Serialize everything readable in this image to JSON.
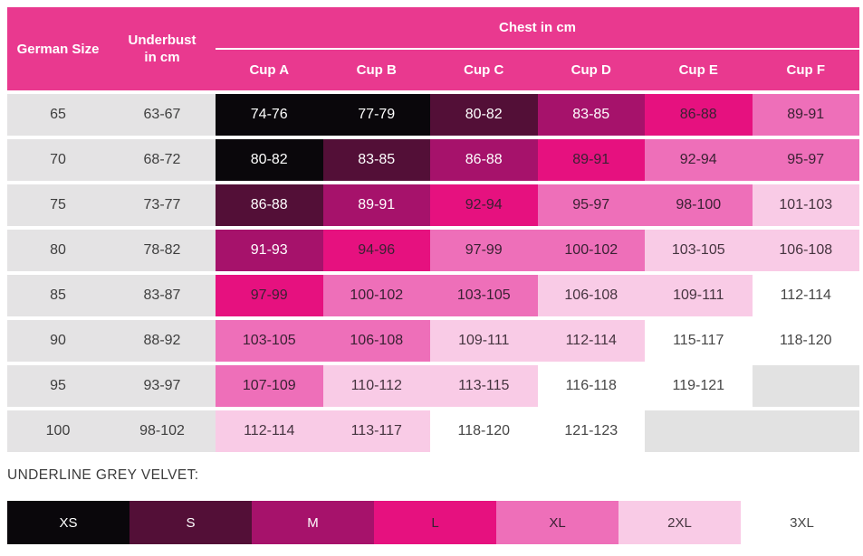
{
  "palette": {
    "s0": {
      "bg": "#0A070B",
      "fg": "#FFFFFF"
    },
    "s1": {
      "bg": "#530F37",
      "fg": "#FFFFFF"
    },
    "s2": {
      "bg": "#A6126B",
      "fg": "#FFFFFF"
    },
    "s3": {
      "bg": "#E6117F",
      "fg": "#3A2133"
    },
    "s4": {
      "bg": "#EE6FB9",
      "fg": "#3A2133"
    },
    "s5": {
      "bg": "#F9CBE6",
      "fg": "#45343F"
    },
    "s6": {
      "bg": "#FFFFFF",
      "fg": "#464646"
    },
    "empty": {
      "bg": "#E2E2E2",
      "fg": "#3E3E3E"
    },
    "header_bg": "#E9398F",
    "label_col_bg": "#E4E3E4"
  },
  "table": {
    "header": {
      "size_label": "German Size",
      "underbust_label": "Underbust in cm",
      "group_label": "Chest in cm",
      "cups": [
        "Cup A",
        "Cup B",
        "Cup C",
        "Cup D",
        "Cup E",
        "Cup F"
      ]
    },
    "rows": [
      {
        "size": "65",
        "underbust": "63-67",
        "cells": [
          {
            "text": "74-76",
            "style": "s0"
          },
          {
            "text": "77-79",
            "style": "s0"
          },
          {
            "text": "80-82",
            "style": "s1"
          },
          {
            "text": "83-85",
            "style": "s2"
          },
          {
            "text": "86-88",
            "style": "s3"
          },
          {
            "text": "89-91",
            "style": "s4"
          }
        ]
      },
      {
        "size": "70",
        "underbust": "68-72",
        "cells": [
          {
            "text": "80-82",
            "style": "s0"
          },
          {
            "text": "83-85",
            "style": "s1"
          },
          {
            "text": "86-88",
            "style": "s2"
          },
          {
            "text": "89-91",
            "style": "s3"
          },
          {
            "text": "92-94",
            "style": "s4"
          },
          {
            "text": "95-97",
            "style": "s4"
          }
        ]
      },
      {
        "size": "75",
        "underbust": "73-77",
        "cells": [
          {
            "text": "86-88",
            "style": "s1"
          },
          {
            "text": "89-91",
            "style": "s2"
          },
          {
            "text": "92-94",
            "style": "s3"
          },
          {
            "text": "95-97",
            "style": "s4"
          },
          {
            "text": "98-100",
            "style": "s4"
          },
          {
            "text": "101-103",
            "style": "s5"
          }
        ]
      },
      {
        "size": "80",
        "underbust": "78-82",
        "cells": [
          {
            "text": "91-93",
            "style": "s2"
          },
          {
            "text": "94-96",
            "style": "s3"
          },
          {
            "text": "97-99",
            "style": "s4"
          },
          {
            "text": "100-102",
            "style": "s4"
          },
          {
            "text": "103-105",
            "style": "s5"
          },
          {
            "text": "106-108",
            "style": "s5"
          }
        ]
      },
      {
        "size": "85",
        "underbust": "83-87",
        "cells": [
          {
            "text": "97-99",
            "style": "s3"
          },
          {
            "text": "100-102",
            "style": "s4"
          },
          {
            "text": "103-105",
            "style": "s4"
          },
          {
            "text": "106-108",
            "style": "s5"
          },
          {
            "text": "109-111",
            "style": "s5"
          },
          {
            "text": "112-114",
            "style": "s6"
          }
        ]
      },
      {
        "size": "90",
        "underbust": "88-92",
        "cells": [
          {
            "text": "103-105",
            "style": "s4"
          },
          {
            "text": "106-108",
            "style": "s4"
          },
          {
            "text": "109-111",
            "style": "s5"
          },
          {
            "text": "112-114",
            "style": "s5"
          },
          {
            "text": "115-117",
            "style": "s6"
          },
          {
            "text": "118-120",
            "style": "s6"
          }
        ]
      },
      {
        "size": "95",
        "underbust": "93-97",
        "cells": [
          {
            "text": "107-109",
            "style": "s4"
          },
          {
            "text": "110-112",
            "style": "s5"
          },
          {
            "text": "113-115",
            "style": "s5"
          },
          {
            "text": "116-118",
            "style": "s6"
          },
          {
            "text": "119-121",
            "style": "s6"
          },
          {
            "text": "",
            "style": "empty"
          }
        ]
      },
      {
        "size": "100",
        "underbust": "98-102",
        "cells": [
          {
            "text": "112-114",
            "style": "s5"
          },
          {
            "text": "113-117",
            "style": "s5"
          },
          {
            "text": "118-120",
            "style": "s6"
          },
          {
            "text": "121-123",
            "style": "s6"
          },
          {
            "text": "",
            "style": "empty"
          },
          {
            "text": "",
            "style": "empty"
          }
        ]
      }
    ]
  },
  "footer": {
    "label": "UNDERLINE GREY VELVET:",
    "sizes": [
      {
        "label": "XS",
        "style": "s0"
      },
      {
        "label": "S",
        "style": "s1"
      },
      {
        "label": "M",
        "style": "s2"
      },
      {
        "label": "L",
        "style": "s3"
      },
      {
        "label": "XL",
        "style": "s4"
      },
      {
        "label": "2XL",
        "style": "s5"
      },
      {
        "label": "3XL",
        "style": "s6"
      }
    ]
  },
  "chart_data": {
    "type": "table",
    "title": "Chest in cm",
    "columns": [
      "German Size",
      "Underbust in cm",
      "Cup A",
      "Cup B",
      "Cup C",
      "Cup D",
      "Cup E",
      "Cup F"
    ],
    "rows": [
      [
        "65",
        "63-67",
        "74-76",
        "77-79",
        "80-82",
        "83-85",
        "86-88",
        "89-91"
      ],
      [
        "70",
        "68-72",
        "80-82",
        "83-85",
        "86-88",
        "89-91",
        "92-94",
        "95-97"
      ],
      [
        "75",
        "73-77",
        "86-88",
        "89-91",
        "92-94",
        "95-97",
        "98-100",
        "101-103"
      ],
      [
        "80",
        "78-82",
        "91-93",
        "94-96",
        "97-99",
        "100-102",
        "103-105",
        "106-108"
      ],
      [
        "85",
        "83-87",
        "97-99",
        "100-102",
        "103-105",
        "106-108",
        "109-111",
        "112-114"
      ],
      [
        "90",
        "88-92",
        "103-105",
        "106-108",
        "109-111",
        "112-114",
        "115-117",
        "118-120"
      ],
      [
        "95",
        "93-97",
        "107-109",
        "110-112",
        "113-115",
        "116-118",
        "119-121",
        ""
      ],
      [
        "100",
        "98-102",
        "112-114",
        "113-117",
        "118-120",
        "121-123",
        "",
        ""
      ]
    ],
    "color_legend": {
      "label": "UNDERLINE GREY VELVET:",
      "entries": [
        "XS",
        "S",
        "M",
        "L",
        "XL",
        "2XL",
        "3XL"
      ],
      "entry_colors": [
        "#0A070B",
        "#530F37",
        "#A6126B",
        "#E6117F",
        "#EE6FB9",
        "#F9CBE6",
        "#FFFFFF"
      ]
    },
    "layout_hints": {
      "grid": "off",
      "legend_position": "bottom",
      "cell_colors_encode": "size group XS-3XL along diagonals"
    }
  }
}
